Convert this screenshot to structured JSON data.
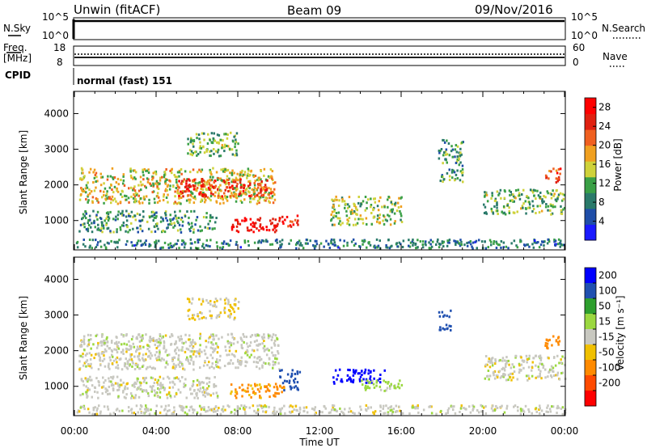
{
  "header": {
    "station": "Unwin (fitACF)",
    "beam": "Beam 09",
    "date": "09/Nov/2016"
  },
  "status_panels": {
    "noise": {
      "left_label": "N.Sky",
      "right_label": "N.Search",
      "left_ticks": [
        "10^5",
        "10^0"
      ],
      "right_ticks": [
        "10^5",
        "10^0"
      ]
    },
    "freq": {
      "left_label_1": "Freq.",
      "left_label_2": "[MHz]",
      "right_label": "Nave",
      "left_ticks": [
        "18",
        "8"
      ],
      "right_ticks": [
        "60",
        "0"
      ]
    },
    "cpid": {
      "label": "CPID",
      "value": "normal (fast) 151"
    }
  },
  "colors": {
    "power": [
      "#1a1aff",
      "#1f4ea8",
      "#2a7a6a",
      "#3aa046",
      "#cfd23a",
      "#f0a020",
      "#f06020",
      "#e02010",
      "#ff0000"
    ],
    "velocity": [
      "#ff0000",
      "#ff4a00",
      "#ff8a00",
      "#f0c000",
      "#c8c8c0",
      "#9bd840",
      "#2e9f2e",
      "#2050b0",
      "#0000ff"
    ]
  },
  "chart_data": [
    {
      "type": "heatmap",
      "name": "power",
      "ylabel": "Slant Range [km]",
      "y_ticks": [
        1000,
        2000,
        3000,
        4000
      ],
      "ylim": [
        200,
        4600
      ],
      "xlim": [
        0,
        24
      ],
      "colorbar_label": "Power [dB]",
      "colorbar_ticks": [
        4,
        8,
        12,
        16,
        20,
        24,
        28
      ],
      "colorbar_range": [
        0,
        30
      ],
      "regions": [
        {
          "t0": 0.2,
          "t1": 9.8,
          "r0": 1500,
          "r1": 2500,
          "value": 16
        },
        {
          "t0": 5.0,
          "t1": 9.8,
          "r0": 1700,
          "r1": 2200,
          "value": 24
        },
        {
          "t0": 7.6,
          "t1": 10.0,
          "r0": 700,
          "r1": 1100,
          "value": 28
        },
        {
          "t0": 10.0,
          "t1": 10.9,
          "r0": 850,
          "r1": 1200,
          "value": 26
        },
        {
          "t0": 0.2,
          "t1": 7.0,
          "r0": 700,
          "r1": 1300,
          "value": 10
        },
        {
          "t0": 5.5,
          "t1": 8.0,
          "r0": 2800,
          "r1": 3500,
          "value": 12
        },
        {
          "t0": 12.5,
          "t1": 16.0,
          "r0": 900,
          "r1": 1700,
          "value": 14
        },
        {
          "t0": 17.8,
          "t1": 19.0,
          "r0": 2100,
          "r1": 3300,
          "value": 10
        },
        {
          "t0": 20.0,
          "t1": 24.0,
          "r0": 1200,
          "r1": 1900,
          "value": 12
        },
        {
          "t0": 23.0,
          "t1": 23.8,
          "r0": 2100,
          "r1": 2500,
          "value": 24
        },
        {
          "t0": 0.0,
          "t1": 24.0,
          "r0": 250,
          "r1": 500,
          "value": 8
        }
      ]
    },
    {
      "type": "heatmap",
      "name": "velocity",
      "ylabel": "Slant Range [km]",
      "y_ticks": [
        1000,
        2000,
        3000,
        4000
      ],
      "ylim": [
        200,
        4600
      ],
      "xlim": [
        0,
        24
      ],
      "xlabel": "Time UT",
      "x_ticks": [
        "00:00",
        "04:00",
        "08:00",
        "12:00",
        "16:00",
        "20:00",
        "00:00"
      ],
      "colorbar_label": "Velocity [m s⁻¹]",
      "colorbar_ticks": [
        "200",
        "100",
        "50",
        "15",
        "-15",
        "-50",
        "-100",
        "-200"
      ],
      "regions": [
        {
          "t0": 0.2,
          "t1": 10.0,
          "r0": 1500,
          "r1": 2500,
          "value": 0
        },
        {
          "t0": 7.6,
          "t1": 10.3,
          "r0": 700,
          "r1": 1100,
          "value": -60
        },
        {
          "t0": 10.0,
          "t1": 11.0,
          "r0": 900,
          "r1": 1500,
          "value": 150
        },
        {
          "t0": 12.6,
          "t1": 15.2,
          "r0": 1100,
          "r1": 1500,
          "value": 250
        },
        {
          "t0": 14.0,
          "t1": 16.0,
          "r0": 900,
          "r1": 1200,
          "value": 30
        },
        {
          "t0": 0.2,
          "t1": 7.0,
          "r0": 700,
          "r1": 1300,
          "value": 0
        },
        {
          "t0": 5.5,
          "t1": 8.0,
          "r0": 2900,
          "r1": 3500,
          "value": -20
        },
        {
          "t0": 20.0,
          "t1": 24.0,
          "r0": 1200,
          "r1": 1900,
          "value": 0
        },
        {
          "t0": 17.8,
          "t1": 18.4,
          "r0": 2600,
          "r1": 3200,
          "value": 120
        },
        {
          "t0": 23.0,
          "t1": 23.8,
          "r0": 2100,
          "r1": 2500,
          "value": -80
        },
        {
          "t0": 0.0,
          "t1": 24.0,
          "r0": 250,
          "r1": 500,
          "value": 0
        }
      ]
    }
  ]
}
